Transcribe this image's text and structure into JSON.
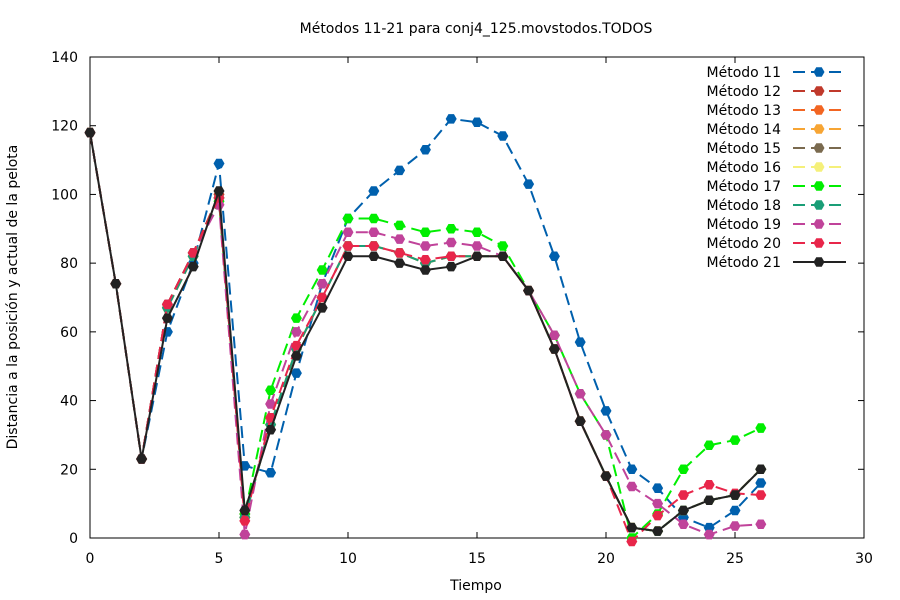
{
  "chart_data": {
    "type": "line",
    "title": "Métodos 11-21 para conj4_125.movstodos.TODOS",
    "xlabel": "Tiempo",
    "ylabel": "Distancia a la posición y actual de la pelota",
    "xlim": [
      0,
      30
    ],
    "ylim": [
      0,
      140
    ],
    "xticks": [
      0,
      5,
      10,
      15,
      20,
      25,
      30
    ],
    "yticks": [
      0,
      20,
      40,
      60,
      80,
      100,
      120,
      140
    ],
    "grid": false,
    "legend_position": "top-right",
    "x": [
      0,
      1,
      2,
      3,
      4,
      5,
      6,
      7,
      8,
      9,
      10,
      11,
      12,
      13,
      14,
      15,
      16,
      17,
      18,
      19,
      20,
      21,
      22,
      23,
      24,
      25,
      26
    ],
    "series": [
      {
        "name": "Método 11",
        "color": "#0060ad",
        "dashed": true,
        "values": [
          118,
          74,
          23,
          60,
          80,
          109,
          21,
          19,
          48,
          74,
          93,
          101,
          107,
          113,
          122,
          121,
          117,
          103,
          82,
          57,
          37,
          20,
          14.5,
          6,
          3,
          8,
          16
        ]
      },
      {
        "name": "Método 12",
        "color": "#c0392b",
        "dashed": true,
        "values": [
          118,
          74,
          23,
          68,
          83,
          100,
          7,
          33,
          55,
          70,
          85,
          85,
          83,
          80,
          82,
          82,
          82,
          72,
          55,
          34,
          18,
          3,
          2,
          8,
          11,
          12.5,
          20
        ]
      },
      {
        "name": "Método 13",
        "color": "#f26522",
        "dashed": true,
        "values": [
          118,
          74,
          23,
          67,
          82,
          99,
          6,
          33,
          55,
          70,
          85,
          85,
          83,
          80,
          82,
          82,
          82,
          72,
          55,
          34,
          18,
          3,
          2,
          8,
          11,
          12.5,
          20
        ]
      },
      {
        "name": "Método 14",
        "color": "#f7a534",
        "dashed": true,
        "values": [
          118,
          74,
          23,
          67,
          82,
          99,
          6,
          33,
          55,
          70,
          85,
          85,
          83,
          80,
          82,
          82,
          82,
          72,
          55,
          34,
          18,
          3,
          2,
          8,
          11,
          12.5,
          20
        ]
      },
      {
        "name": "Método 15",
        "color": "#7a6a4f",
        "dashed": true,
        "values": [
          118,
          74,
          23,
          67,
          82,
          99,
          6,
          33,
          55,
          70,
          85,
          85,
          83,
          80,
          82,
          82,
          82,
          72,
          55,
          34,
          18,
          3,
          2,
          8,
          11,
          12.5,
          20
        ]
      },
      {
        "name": "Método 16",
        "color": "#f5f07a",
        "dashed": true,
        "values": [
          118,
          74,
          23,
          67,
          82,
          99,
          6,
          33,
          55,
          70,
          85,
          85,
          83,
          80,
          82,
          82,
          82,
          72,
          55,
          34,
          18,
          3,
          2,
          8,
          11,
          12.5,
          20
        ]
      },
      {
        "name": "Método 17",
        "color": "#00ee00",
        "dashed": true,
        "values": [
          118,
          74,
          23,
          68,
          83,
          98,
          7,
          43,
          64,
          78,
          93,
          93,
          91,
          89,
          90,
          89,
          85,
          72,
          59,
          42,
          30,
          0,
          7,
          20,
          27,
          28.5,
          32
        ]
      },
      {
        "name": "Método 18",
        "color": "#1a9e77",
        "dashed": true,
        "values": [
          118,
          74,
          23,
          67,
          82,
          99,
          6,
          33,
          55,
          70,
          85,
          85,
          83,
          80,
          82,
          82,
          82,
          72,
          55,
          34,
          18,
          3,
          2,
          8,
          11,
          12.5,
          20
        ]
      },
      {
        "name": "Método 19",
        "color": "#c0439a",
        "dashed": true,
        "values": [
          118,
          74,
          23,
          68,
          83,
          97,
          1,
          39,
          60,
          74,
          89,
          89,
          87,
          85,
          86,
          85,
          82,
          72,
          59,
          42,
          30,
          15,
          10,
          4,
          1,
          3.5,
          4
        ]
      },
      {
        "name": "Método 20",
        "color": "#e8264a",
        "dashed": true,
        "values": [
          118,
          74,
          23,
          68,
          83,
          99,
          5,
          35,
          56,
          70,
          85,
          85,
          83,
          81,
          82,
          82,
          82,
          72,
          55,
          34,
          18,
          -1,
          6.5,
          12.5,
          15.5,
          13,
          12.5
        ]
      },
      {
        "name": "Método 21",
        "color": "#222222",
        "dashed": false,
        "values": [
          118,
          74,
          23,
          64,
          79,
          101,
          8,
          31.5,
          53,
          67,
          82,
          82,
          80,
          78,
          79,
          82,
          82,
          72,
          55,
          34,
          18,
          3,
          2,
          8,
          11,
          12.5,
          20
        ]
      }
    ]
  }
}
